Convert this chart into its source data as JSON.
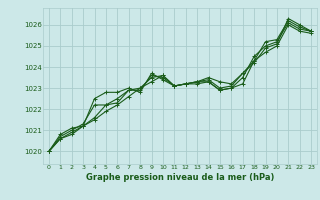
{
  "title": "Graphe pression niveau de la mer (hPa)",
  "bg_color": "#cce8e8",
  "grid_color": "#aacccc",
  "line_color": "#1a5c1a",
  "xlim": [
    -0.5,
    23.5
  ],
  "ylim": [
    1019.4,
    1026.8
  ],
  "xticks": [
    0,
    1,
    2,
    3,
    4,
    5,
    6,
    7,
    8,
    9,
    10,
    11,
    12,
    13,
    14,
    15,
    16,
    17,
    18,
    19,
    20,
    21,
    22,
    23
  ],
  "yticks": [
    1020,
    1021,
    1022,
    1023,
    1024,
    1025,
    1026
  ],
  "series": [
    [
      1020.0,
      1020.6,
      1020.8,
      1021.2,
      1021.5,
      1021.9,
      1022.2,
      1022.6,
      1023.0,
      1023.3,
      1023.6,
      1023.1,
      1023.2,
      1023.2,
      1023.3,
      1022.9,
      1023.0,
      1023.2,
      1024.3,
      1024.7,
      1025.0,
      1026.0,
      1025.7,
      1025.6
    ],
    [
      1020.0,
      1020.6,
      1020.9,
      1021.2,
      1021.6,
      1022.2,
      1022.5,
      1022.9,
      1023.0,
      1023.5,
      1023.6,
      1023.1,
      1023.2,
      1023.3,
      1023.3,
      1022.9,
      1023.0,
      1023.5,
      1024.5,
      1025.0,
      1025.2,
      1026.1,
      1025.8,
      1025.7
    ],
    [
      1020.0,
      1020.7,
      1021.0,
      1021.3,
      1022.2,
      1022.2,
      1022.3,
      1022.9,
      1022.9,
      1023.6,
      1023.5,
      1023.1,
      1023.2,
      1023.3,
      1023.4,
      1023.0,
      1023.1,
      1023.7,
      1024.3,
      1025.2,
      1025.3,
      1026.2,
      1025.9,
      1025.7
    ],
    [
      1020.0,
      1020.8,
      1021.1,
      1021.2,
      1022.5,
      1022.8,
      1022.8,
      1023.0,
      1022.8,
      1023.7,
      1023.4,
      1023.1,
      1023.2,
      1023.3,
      1023.5,
      1023.3,
      1023.2,
      1023.7,
      1024.2,
      1024.9,
      1025.1,
      1026.3,
      1026.0,
      1025.7
    ]
  ]
}
